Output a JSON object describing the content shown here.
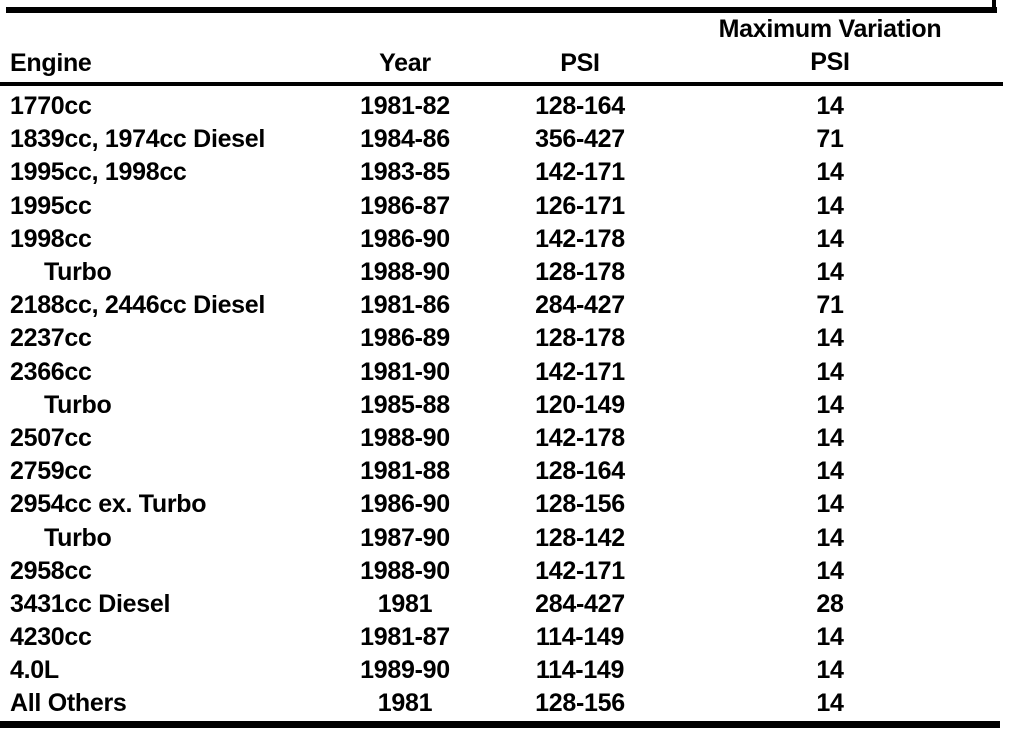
{
  "table": {
    "headers": {
      "engine": "Engine",
      "year": "Year",
      "psi": "PSI",
      "max_variation_line1": "Maximum Variation",
      "max_variation_line2": "PSI"
    },
    "rows": [
      {
        "engine": "1770cc",
        "indent": false,
        "year": "1981-82",
        "psi": "128-164",
        "max_variation": "14"
      },
      {
        "engine": "1839cc, 1974cc Diesel",
        "indent": false,
        "year": "1984-86",
        "psi": "356-427",
        "max_variation": "71"
      },
      {
        "engine": "1995cc, 1998cc",
        "indent": false,
        "year": "1983-85",
        "psi": "142-171",
        "max_variation": "14"
      },
      {
        "engine": "1995cc",
        "indent": false,
        "year": "1986-87",
        "psi": "126-171",
        "max_variation": "14"
      },
      {
        "engine": "1998cc",
        "indent": false,
        "year": "1986-90",
        "psi": "142-178",
        "max_variation": "14"
      },
      {
        "engine": "Turbo",
        "indent": true,
        "year": "1988-90",
        "psi": "128-178",
        "max_variation": "14"
      },
      {
        "engine": "2188cc, 2446cc Diesel",
        "indent": false,
        "year": "1981-86",
        "psi": "284-427",
        "max_variation": "71"
      },
      {
        "engine": "2237cc",
        "indent": false,
        "year": "1986-89",
        "psi": "128-178",
        "max_variation": "14"
      },
      {
        "engine": "2366cc",
        "indent": false,
        "year": "1981-90",
        "psi": "142-171",
        "max_variation": "14"
      },
      {
        "engine": "Turbo",
        "indent": true,
        "year": "1985-88",
        "psi": "120-149",
        "max_variation": "14"
      },
      {
        "engine": "2507cc",
        "indent": false,
        "year": "1988-90",
        "psi": "142-178",
        "max_variation": "14"
      },
      {
        "engine": "2759cc",
        "indent": false,
        "year": "1981-88",
        "psi": "128-164",
        "max_variation": "14"
      },
      {
        "engine": "2954cc ex. Turbo",
        "indent": false,
        "year": "1986-90",
        "psi": "128-156",
        "max_variation": "14"
      },
      {
        "engine": "Turbo",
        "indent": true,
        "year": "1987-90",
        "psi": "128-142",
        "max_variation": "14"
      },
      {
        "engine": "2958cc",
        "indent": false,
        "year": "1988-90",
        "psi": "142-171",
        "max_variation": "14"
      },
      {
        "engine": "3431cc Diesel",
        "indent": false,
        "year": "1981",
        "psi": "284-427",
        "max_variation": "28"
      },
      {
        "engine": "4230cc",
        "indent": false,
        "year": "1981-87",
        "psi": "114-149",
        "max_variation": "14"
      },
      {
        "engine": "4.0L",
        "indent": false,
        "year": "1989-90",
        "psi": "114-149",
        "max_variation": "14"
      },
      {
        "engine": "All Others",
        "indent": false,
        "year": "1981",
        "psi": "128-156",
        "max_variation": "14"
      }
    ]
  }
}
